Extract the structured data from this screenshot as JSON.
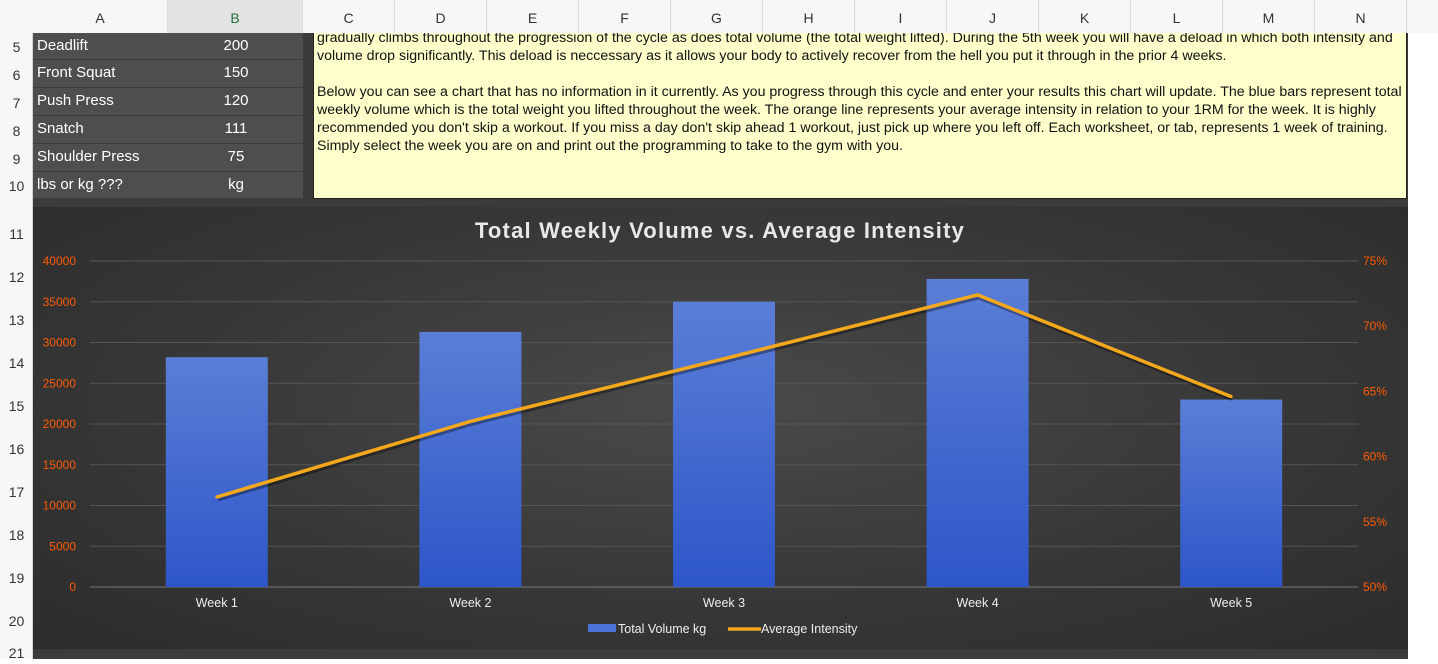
{
  "columns": [
    "A",
    "B",
    "C",
    "D",
    "E",
    "F",
    "G",
    "H",
    "I",
    "J",
    "K",
    "L",
    "M",
    "N"
  ],
  "active_column": "B",
  "rows": [
    "5",
    "6",
    "7",
    "8",
    "9",
    "10",
    "11",
    "12",
    "13",
    "14",
    "15",
    "16",
    "17",
    "18",
    "19",
    "20",
    "21"
  ],
  "lifts": [
    {
      "name": "Deadlift",
      "value": "200"
    },
    {
      "name": "Front Squat",
      "value": "150"
    },
    {
      "name": "Push Press",
      "value": "120"
    },
    {
      "name": "Snatch",
      "value": "111"
    },
    {
      "name": "Shoulder Press",
      "value": "75"
    },
    {
      "name": "lbs or kg ???",
      "value": "kg"
    }
  ],
  "notes": {
    "paragraph1": "gradually climbs throughout the progression of the cycle as does total volume (the total weight lifted). During the 5th week you will have a deload in which both intensity and volume drop significantly. This deload is neccessary as it allows your body to actively recover from the hell you put it through in the prior 4 weeks.",
    "paragraph2": "Below you can see a chart that has no information in it currently. As you progress through this cycle and enter your results this chart will update. The blue bars represent total weekly volume which is the total weight you lifted throughout the week. The orange line represents your average intensity in relation to your 1RM for the week. It is highly recommended you don't skip a workout. If you miss a day don't skip ahead 1 workout, just pick up where you left off. Each worksheet, or tab, represents 1 week of training. Simply select the week you are on and print out the programming to take to the gym with you."
  },
  "chart_data": {
    "type": "bar",
    "title": "Total Weekly Volume vs. Average Intensity",
    "categories": [
      "Week 1",
      "Week 2",
      "Week 3",
      "Week 4",
      "Week 5"
    ],
    "series": [
      {
        "name": "Total Volume kg",
        "type": "bar",
        "axis": "left",
        "color": "#4a72d8",
        "values": [
          28200,
          31300,
          35000,
          37800,
          23000
        ]
      },
      {
        "name": "Average Intensity",
        "type": "line",
        "axis": "right",
        "color": "#f5a81c",
        "values": [
          56.9,
          62.7,
          67.5,
          72.4,
          64.6
        ]
      }
    ],
    "y_left": {
      "min": 0,
      "max": 40000,
      "ticks": [
        "0",
        "5000",
        "10000",
        "15000",
        "20000",
        "25000",
        "30000",
        "35000",
        "40000"
      ]
    },
    "y_right": {
      "min": 50,
      "max": 75,
      "ticks": [
        "50%",
        "55%",
        "60%",
        "65%",
        "70%",
        "75%"
      ]
    },
    "axis_label_color": "#ff5a00",
    "grid": true,
    "legend_position": "bottom"
  }
}
